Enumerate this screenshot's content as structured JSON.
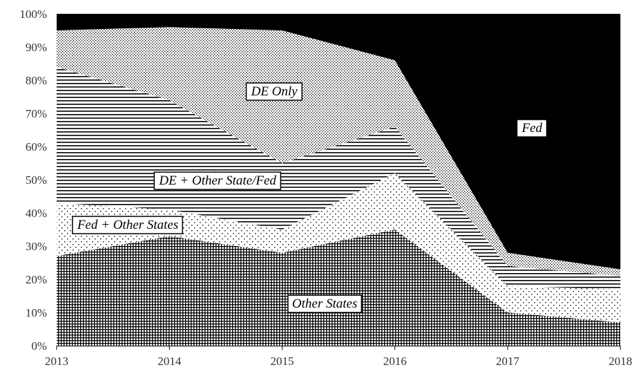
{
  "chart_data": {
    "type": "area",
    "stacked": true,
    "percent": true,
    "x": [
      "2013",
      "2014",
      "2015",
      "2016",
      "2017",
      "2018"
    ],
    "ylim": [
      0,
      100
    ],
    "yticks": [
      "0%",
      "10%",
      "20%",
      "30%",
      "40%",
      "50%",
      "60%",
      "70%",
      "80%",
      "90%",
      "100%"
    ],
    "series": [
      {
        "name": "Other States",
        "values": [
          27,
          33,
          28,
          35,
          10,
          7
        ],
        "pattern": "grid"
      },
      {
        "name": "Fed + Other States",
        "values": [
          16,
          8,
          7,
          17,
          8,
          10
        ],
        "pattern": "dots-sparse"
      },
      {
        "name": "DE + Other State/Fed",
        "values": [
          41,
          33,
          20,
          14,
          6,
          4
        ],
        "pattern": "hlines"
      },
      {
        "name": "DE Only",
        "values": [
          11,
          22,
          40,
          20,
          4,
          2
        ],
        "pattern": "dots-dense"
      },
      {
        "name": "Fed",
        "values": [
          5,
          4,
          5,
          14,
          72,
          77
        ],
        "pattern": "solid-black"
      }
    ],
    "area_labels": [
      "Other States",
      "Fed + Other States",
      "DE + Other State/Fed",
      "DE Only",
      "Fed"
    ],
    "title": "",
    "xlabel": "",
    "ylabel": "",
    "legend": "none (labels placed inside areas)",
    "grid": false
  }
}
